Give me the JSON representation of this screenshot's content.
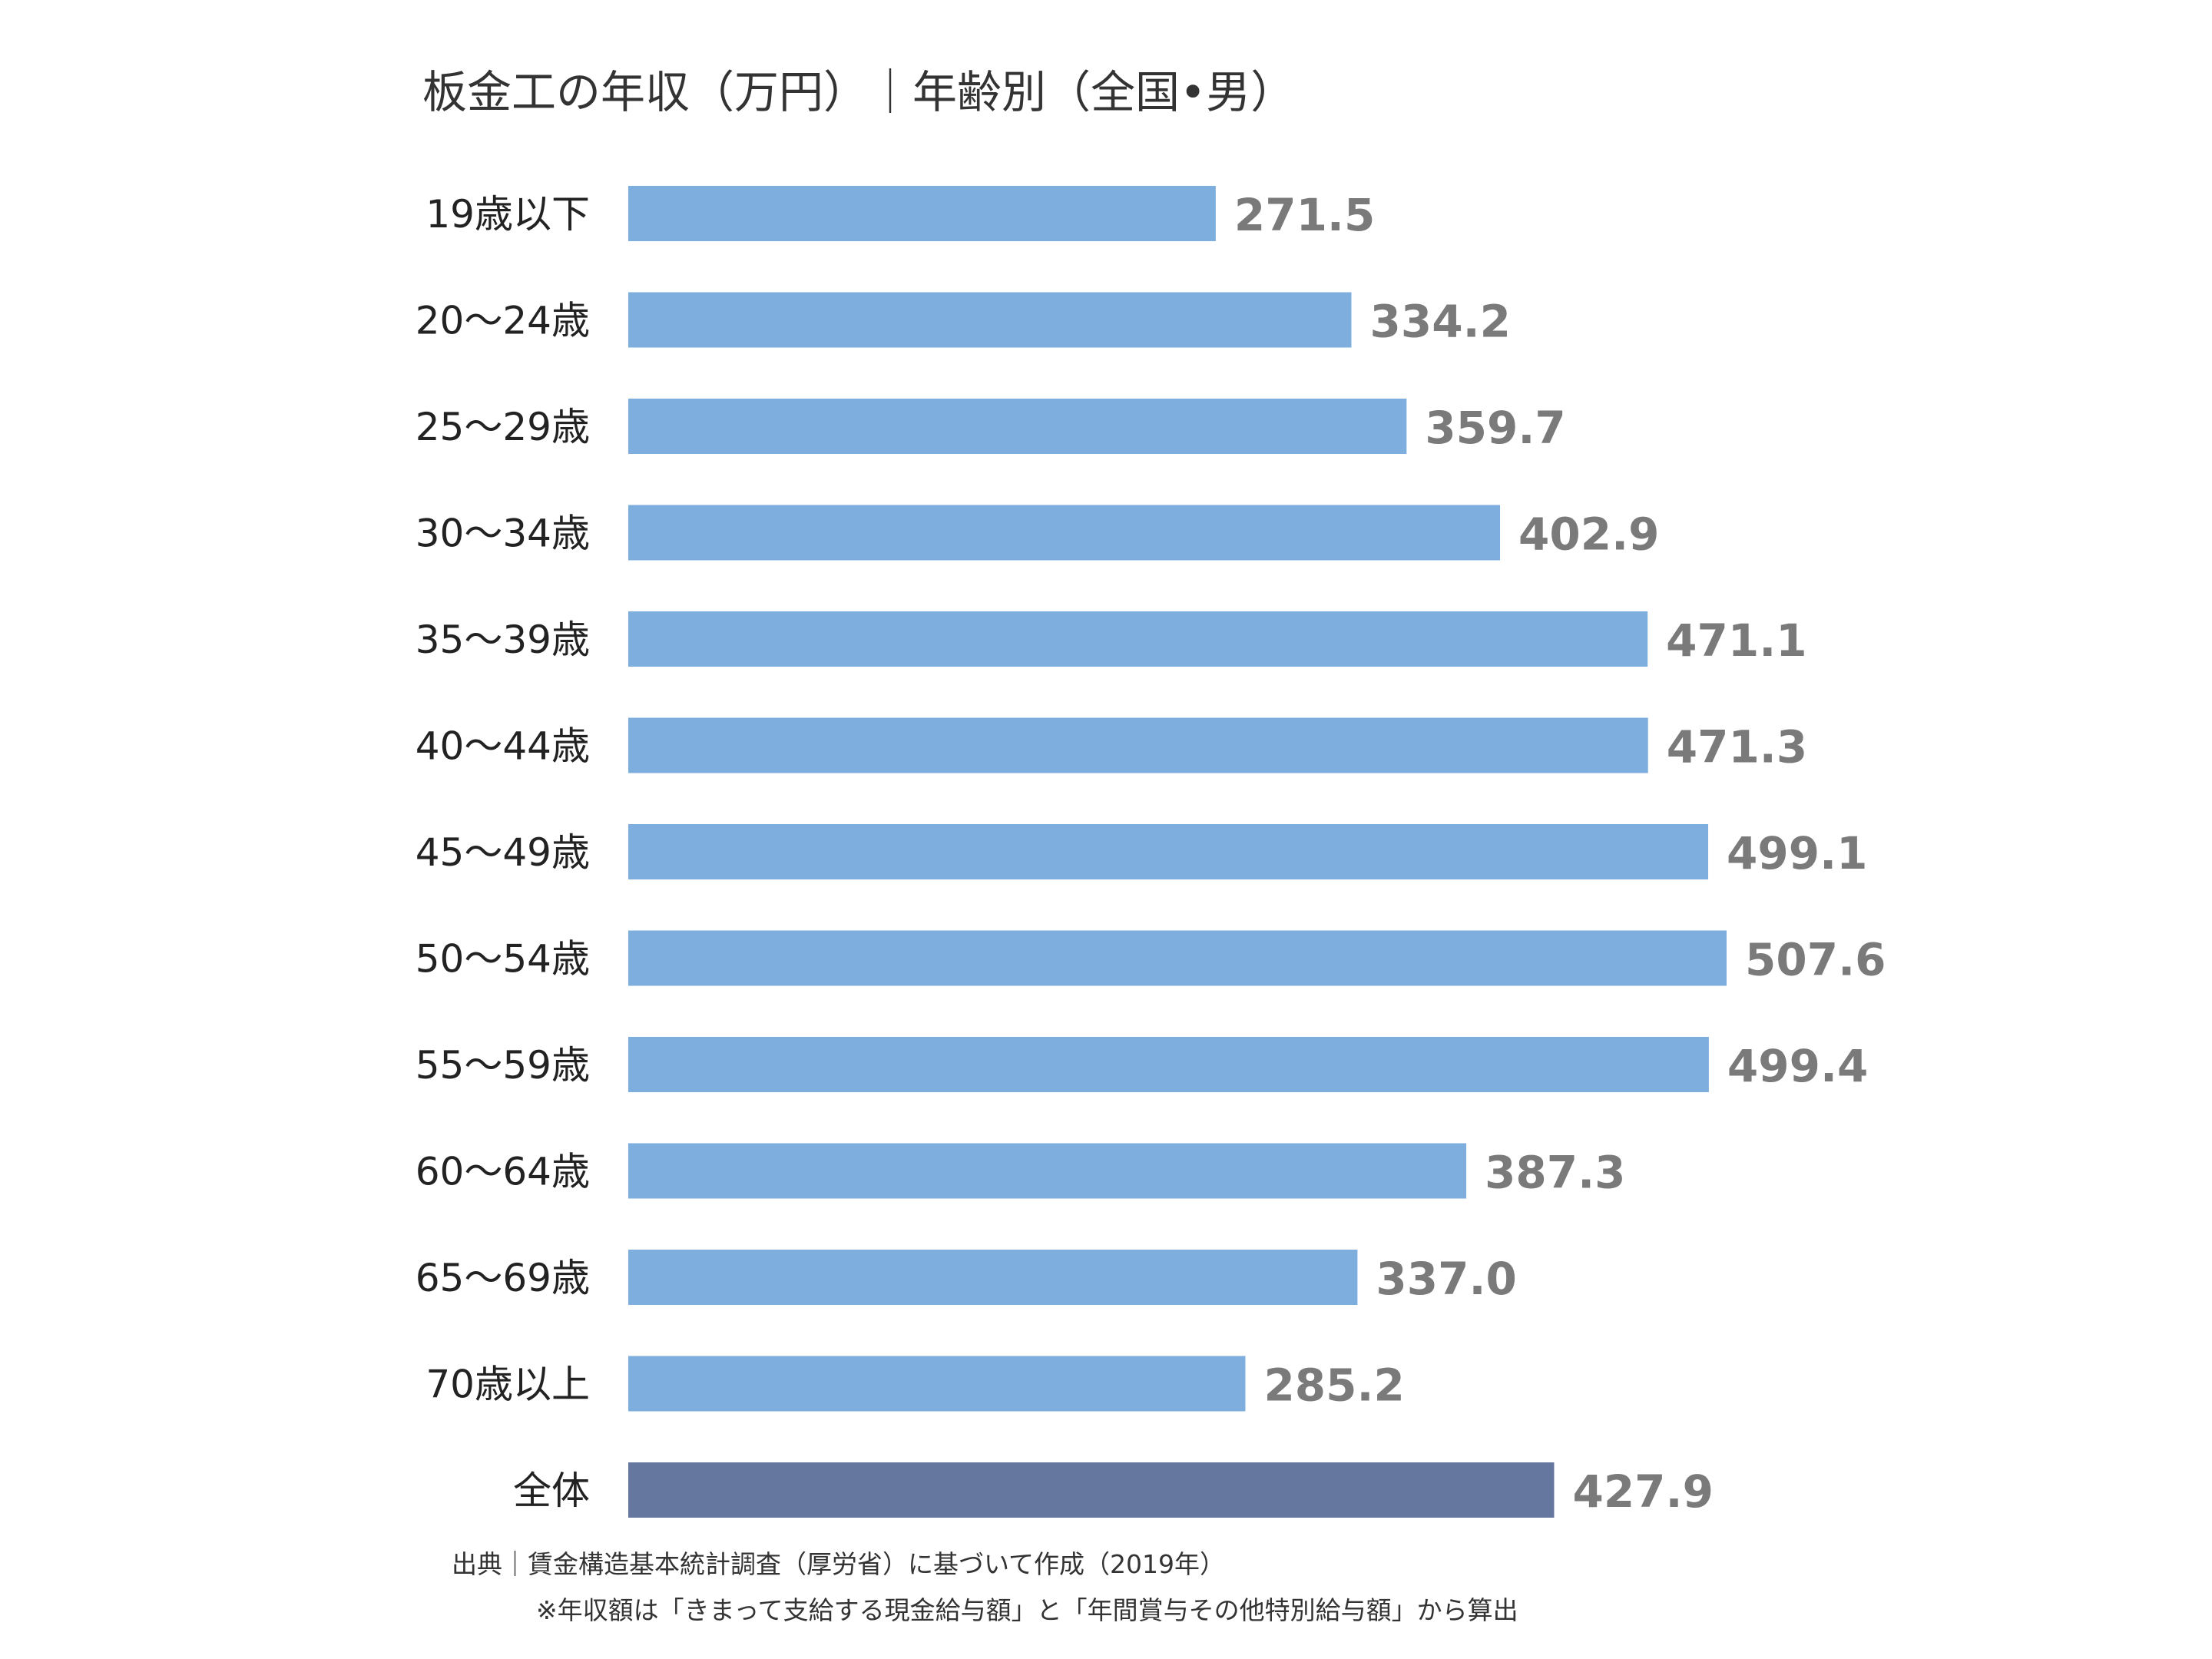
{
  "chart_data": {
    "type": "bar",
    "orientation": "horizontal",
    "title": "板金工の年収（万円）｜年齢別（全国•男）",
    "categories": [
      "19歳以下",
      "20〜24歳",
      "25〜29歳",
      "30〜34歳",
      "35〜39歳",
      "40〜44歳",
      "45〜49歳",
      "50〜54歳",
      "55〜59歳",
      "60〜64歳",
      "65〜69歳",
      "70歳以上",
      "全体"
    ],
    "values": [
      271.5,
      334.2,
      359.7,
      402.9,
      471.1,
      471.3,
      499.1,
      507.6,
      499.4,
      387.3,
      337.0,
      285.2,
      427.9
    ],
    "value_labels": [
      "271.5",
      "334.2",
      "359.7",
      "402.9",
      "471.1",
      "471.3",
      "499.1",
      "507.6",
      "499.4",
      "387.3",
      "337.0",
      "285.2",
      "427.9"
    ],
    "xlim": [
      0,
      507.6
    ],
    "grid": false,
    "xlabel": "",
    "ylabel": "",
    "colors": {
      "bar": "#7daede",
      "total_bar": "#65779f",
      "value_text": "#7a7a7a"
    }
  },
  "footnotes": {
    "source": "出典｜賃金構造基本統計調査（厚労省）に基づいて作成（2019年）",
    "note": "※年収額は「きまって支給する現金給与額」と「年間賞与その他特別給与額」から算出"
  }
}
